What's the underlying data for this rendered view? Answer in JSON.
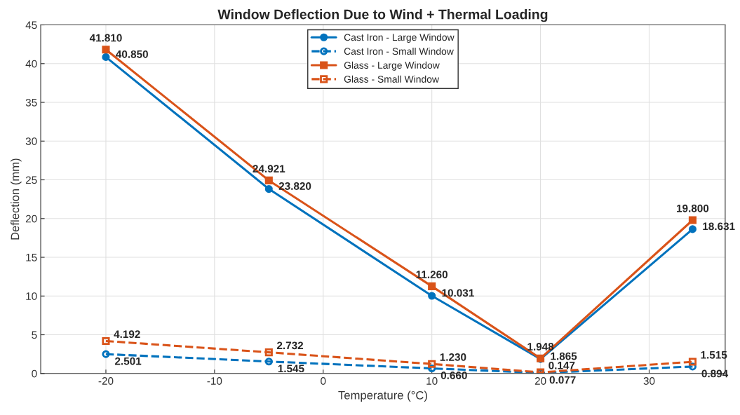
{
  "chart_data": {
    "type": "line",
    "title": "Window Deflection Due to Wind + Thermal Loading",
    "xlabel": "Temperature (°C)",
    "ylabel": "Deflection (mm)",
    "x": [
      -20,
      -5,
      10,
      20,
      34
    ],
    "series": [
      {
        "name": "Cast Iron - Large Window",
        "color": "#0072bd",
        "marker": "circle",
        "line_style": "solid",
        "values": [
          40.85,
          23.82,
          10.031,
          1.865,
          18.631
        ],
        "value_labels": [
          "40.850",
          "23.820",
          "10.031",
          "1.865",
          "18.631"
        ]
      },
      {
        "name": "Cast Iron - Small Window",
        "color": "#0072bd",
        "marker": "circle",
        "line_style": "dashed",
        "values": [
          2.501,
          1.545,
          0.66,
          0.077,
          0.894
        ],
        "value_labels": [
          "2.501",
          "1.545",
          "0.660",
          "0.077",
          "0.894"
        ]
      },
      {
        "name": "Glass - Large Window",
        "color": "#d95319",
        "marker": "square",
        "line_style": "solid",
        "values": [
          41.81,
          24.921,
          11.26,
          1.948,
          19.8
        ],
        "value_labels": [
          "41.810",
          "24.921",
          "11.260",
          "1.948",
          "19.800"
        ]
      },
      {
        "name": "Glass - Small Window",
        "color": "#d95319",
        "marker": "square",
        "line_style": "dashed",
        "values": [
          4.192,
          2.732,
          1.23,
          0.147,
          1.515
        ],
        "value_labels": [
          "4.192",
          "2.732",
          "1.230",
          "0.147",
          "1.515"
        ]
      }
    ],
    "xlim": [
      -26,
      37
    ],
    "xticks": [
      -20,
      -10,
      0,
      10,
      20,
      30
    ],
    "ylim": [
      0,
      45
    ],
    "yticks": [
      0,
      5,
      10,
      15,
      20,
      25,
      30,
      35,
      40,
      45
    ],
    "grid": true,
    "legend": "top"
  }
}
